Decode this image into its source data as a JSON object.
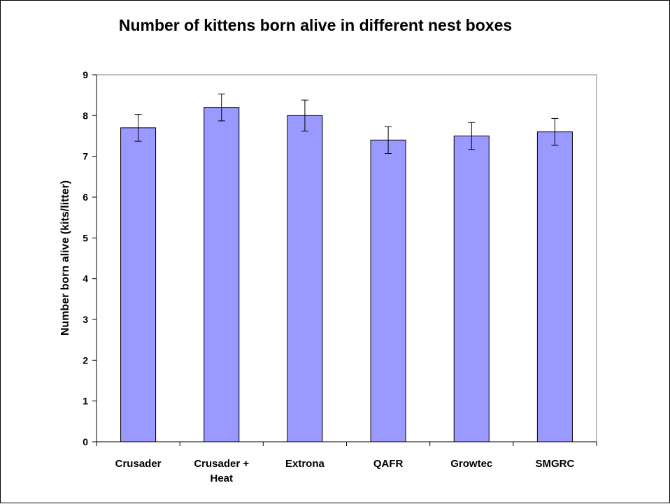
{
  "chart_data": {
    "type": "bar",
    "title": "Number of kittens born alive in different nest boxes",
    "xlabel": "",
    "ylabel": "Number born alive (kits/litter)",
    "categories": [
      "Crusader",
      "Crusader + Heat",
      "Extrona",
      "QAFR",
      "Growtec",
      "SMGRC"
    ],
    "category_lines": [
      [
        "Crusader"
      ],
      [
        "Crusader +",
        "Heat"
      ],
      [
        "Extrona"
      ],
      [
        "QAFR"
      ],
      [
        "Growtec"
      ],
      [
        "SMGRC"
      ]
    ],
    "values": [
      7.7,
      8.2,
      8.0,
      7.4,
      7.5,
      7.6
    ],
    "errors": [
      0.33,
      0.33,
      0.38,
      0.33,
      0.33,
      0.33
    ],
    "ylim": [
      0,
      9
    ],
    "yticks": [
      0,
      1,
      2,
      3,
      4,
      5,
      6,
      7,
      8,
      9
    ],
    "grid": false,
    "legend": "none",
    "bar_color": "#9999ff",
    "bar_edge_color": "#000000"
  }
}
